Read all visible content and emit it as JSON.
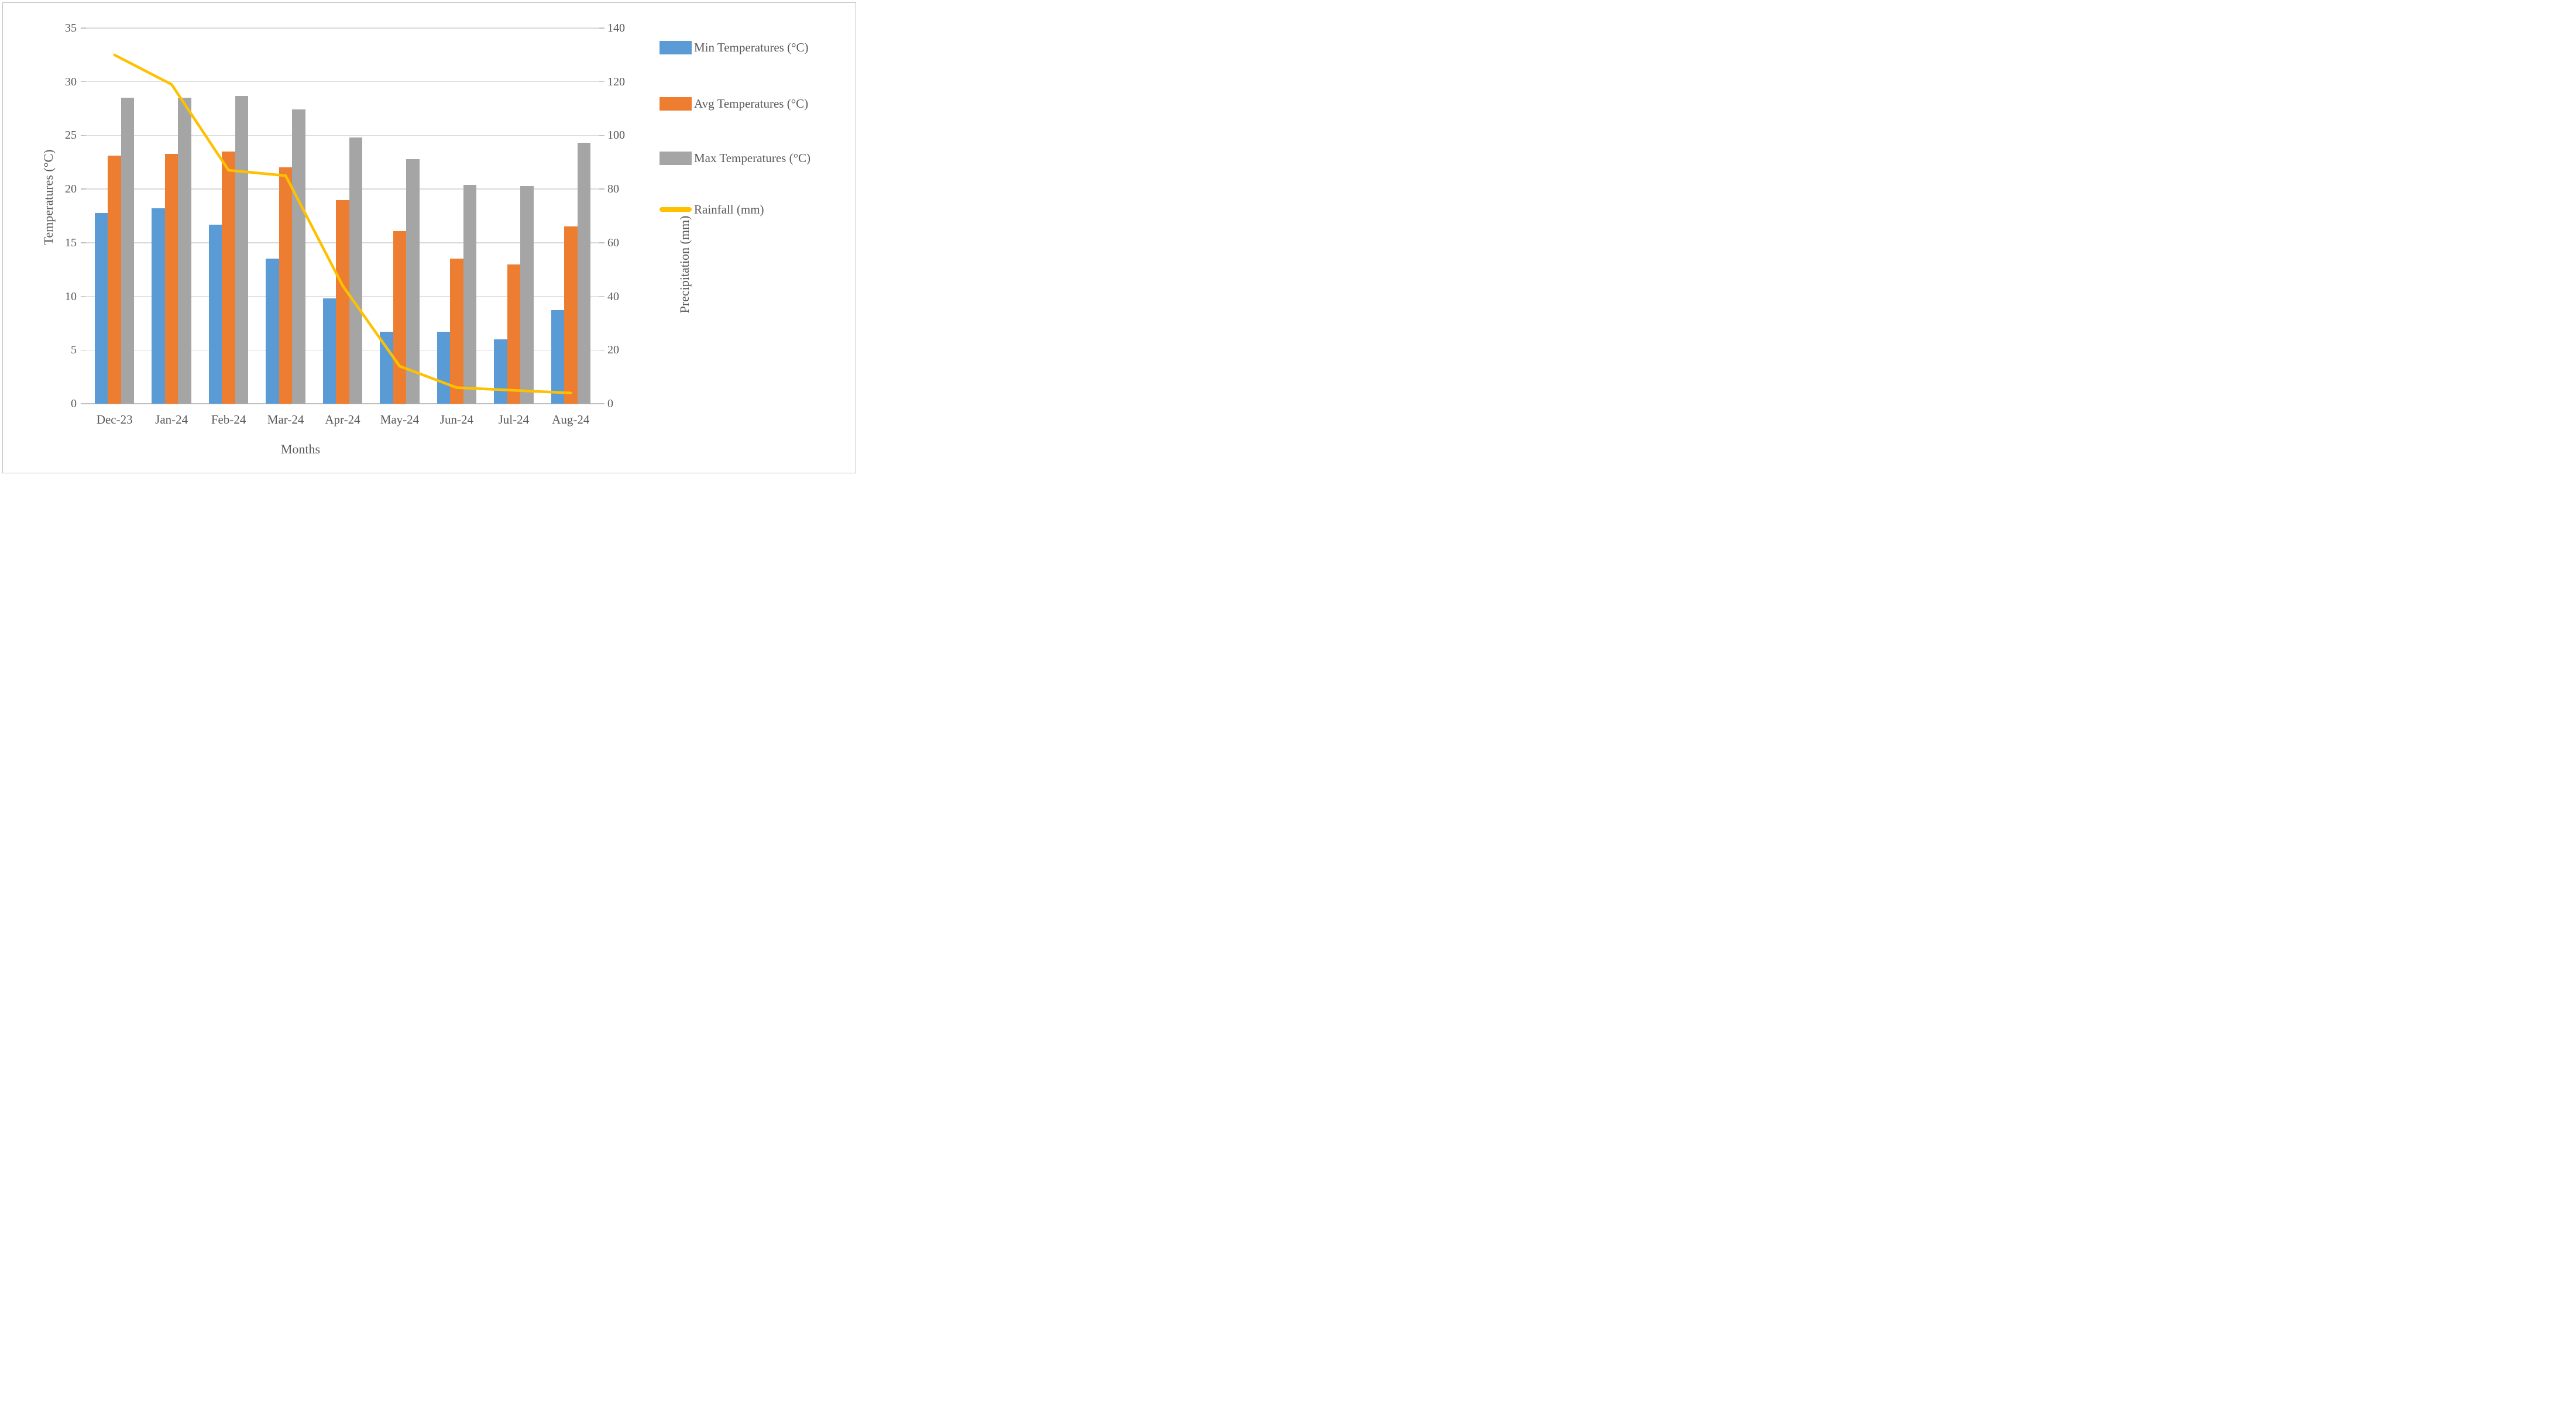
{
  "chart_data": {
    "type": "bar+line combo",
    "categories": [
      "Dec-23",
      "Jan-24",
      "Feb-24",
      "Mar-24",
      "Apr-24",
      "May-24",
      "Jun-24",
      "Jul-24",
      "Aug-24"
    ],
    "series": [
      {
        "name": "Min Temperatures (°C)",
        "type": "bar",
        "axis": "left",
        "color": "#5B9BD5",
        "values": [
          17.8,
          18.2,
          16.7,
          13.5,
          9.8,
          6.7,
          6.7,
          6.0,
          8.7
        ]
      },
      {
        "name": "Avg Temperatures (°C)",
        "type": "bar",
        "axis": "left",
        "color": "#ED7D31",
        "values": [
          23.1,
          23.3,
          23.5,
          22.0,
          19.0,
          16.1,
          13.5,
          13.0,
          16.5
        ]
      },
      {
        "name": "Max Temperatures (°C)",
        "type": "bar",
        "axis": "left",
        "color": "#A5A5A5",
        "values": [
          28.5,
          28.5,
          28.7,
          27.4,
          24.8,
          22.8,
          20.4,
          20.3,
          24.3
        ]
      },
      {
        "name": "Rainfall (mm)",
        "type": "line",
        "axis": "right",
        "color": "#FFC000",
        "values": [
          130,
          119,
          87,
          85,
          44,
          14,
          6,
          5,
          4
        ]
      }
    ],
    "xlabel": "Months",
    "ylabel_left": "Temperatures (°C)",
    "ylabel_right": "Precipitation (mm)",
    "ylim_left": [
      0,
      35
    ],
    "ylim_right": [
      0,
      140
    ],
    "grid": true,
    "legend_position": "right"
  },
  "axes": {
    "left_ticks": [
      "0",
      "5",
      "10",
      "15",
      "20",
      "25",
      "30",
      "35"
    ],
    "right_ticks": [
      "0",
      "20",
      "40",
      "60",
      "80",
      "100",
      "120",
      "140"
    ]
  },
  "style_colors": {
    "gridline": "#D9D9D9",
    "axis_line": "#BFBFBF",
    "text": "#595959",
    "frame_border": "#BFBFBF",
    "background": "#FFFFFF"
  }
}
